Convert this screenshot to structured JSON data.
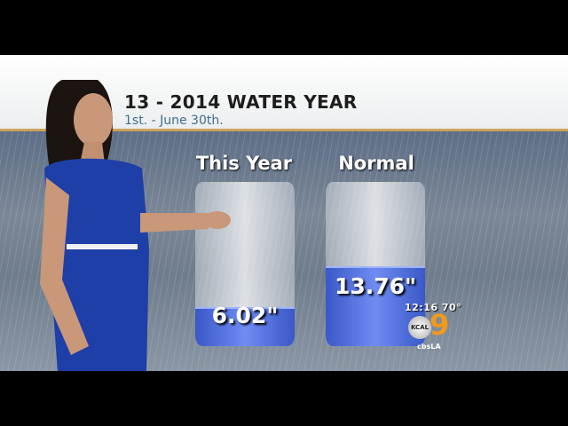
{
  "header": {
    "title": "13 - 2014 WATER YEAR",
    "subtitle": "1st. - June 30th."
  },
  "comparison": [
    {
      "label": "This Year",
      "value": 6.02,
      "display": "6.02\""
    },
    {
      "label": "Normal",
      "value": 13.76,
      "display": "13.76\""
    }
  ],
  "bug": {
    "time_temp": "12:16 70°",
    "station": "KCAL",
    "channel": "9",
    "handle": "cbsLA"
  },
  "colors": {
    "fill": "#4a68d8",
    "accent": "#c9a45a",
    "channel": "#f39a1c"
  }
}
